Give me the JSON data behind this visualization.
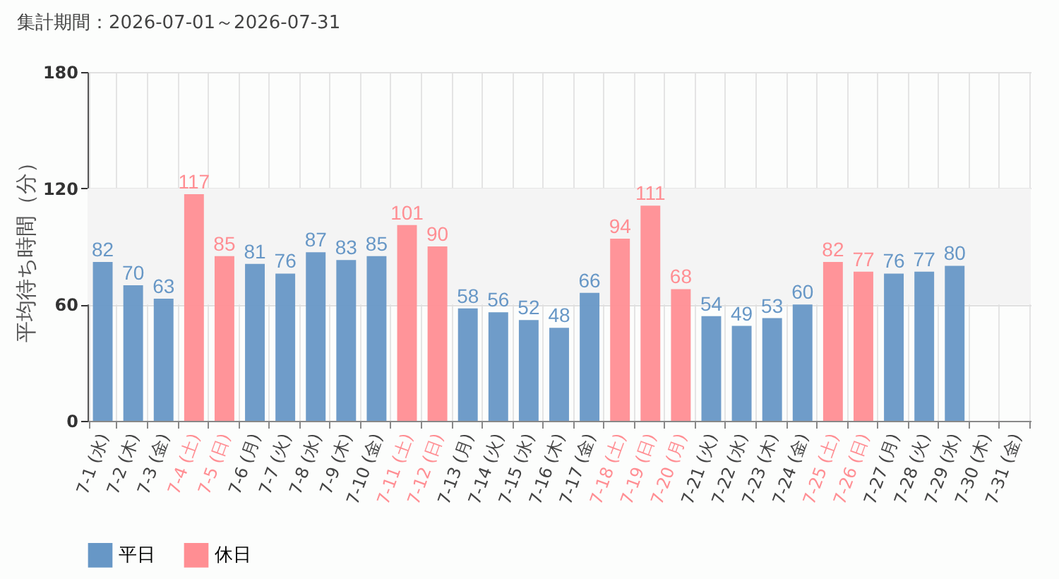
{
  "chart_data": {
    "type": "bar",
    "title": "集計期間：2026-07-01～2026-07-31",
    "ylabel": "平均待ち時間（分）",
    "categories": [
      "7-1 (水)",
      "7-2 (木)",
      "7-3 (金)",
      "7-4 (土)",
      "7-5 (日)",
      "7-6 (月)",
      "7-7 (火)",
      "7-8 (水)",
      "7-9 (木)",
      "7-10 (金)",
      "7-11 (土)",
      "7-12 (日)",
      "7-13 (月)",
      "7-14 (火)",
      "7-15 (水)",
      "7-16 (木)",
      "7-17 (金)",
      "7-18 (土)",
      "7-19 (日)",
      "7-20 (月)",
      "7-21 (火)",
      "7-22 (水)",
      "7-23 (木)",
      "7-24 (金)",
      "7-25 (土)",
      "7-26 (日)",
      "7-27 (月)",
      "7-28 (火)",
      "7-29 (水)",
      "7-30 (木)",
      "7-31 (金)"
    ],
    "series": [
      {
        "name": "平日",
        "color": "#6797c6",
        "values": [
          82,
          70,
          63,
          null,
          null,
          81,
          76,
          87,
          83,
          85,
          null,
          null,
          58,
          56,
          52,
          48,
          66,
          null,
          null,
          null,
          54,
          49,
          53,
          60,
          null,
          null,
          76,
          77,
          80,
          null,
          null
        ]
      },
      {
        "name": "休日",
        "color": "#ff8e93",
        "values": [
          null,
          null,
          null,
          117,
          85,
          null,
          null,
          null,
          null,
          null,
          101,
          90,
          null,
          null,
          null,
          null,
          null,
          94,
          111,
          68,
          null,
          null,
          null,
          null,
          82,
          77,
          null,
          null,
          null,
          null,
          null
        ]
      }
    ],
    "ylim": [
      0,
      180
    ],
    "yticks": [
      0,
      60,
      120,
      180
    ],
    "grid": true,
    "legend": "bottom left",
    "data_labels": true,
    "bands": [
      {
        "axis": "y",
        "from": 60,
        "to": 120,
        "color": "#f4f4f4"
      }
    ]
  }
}
